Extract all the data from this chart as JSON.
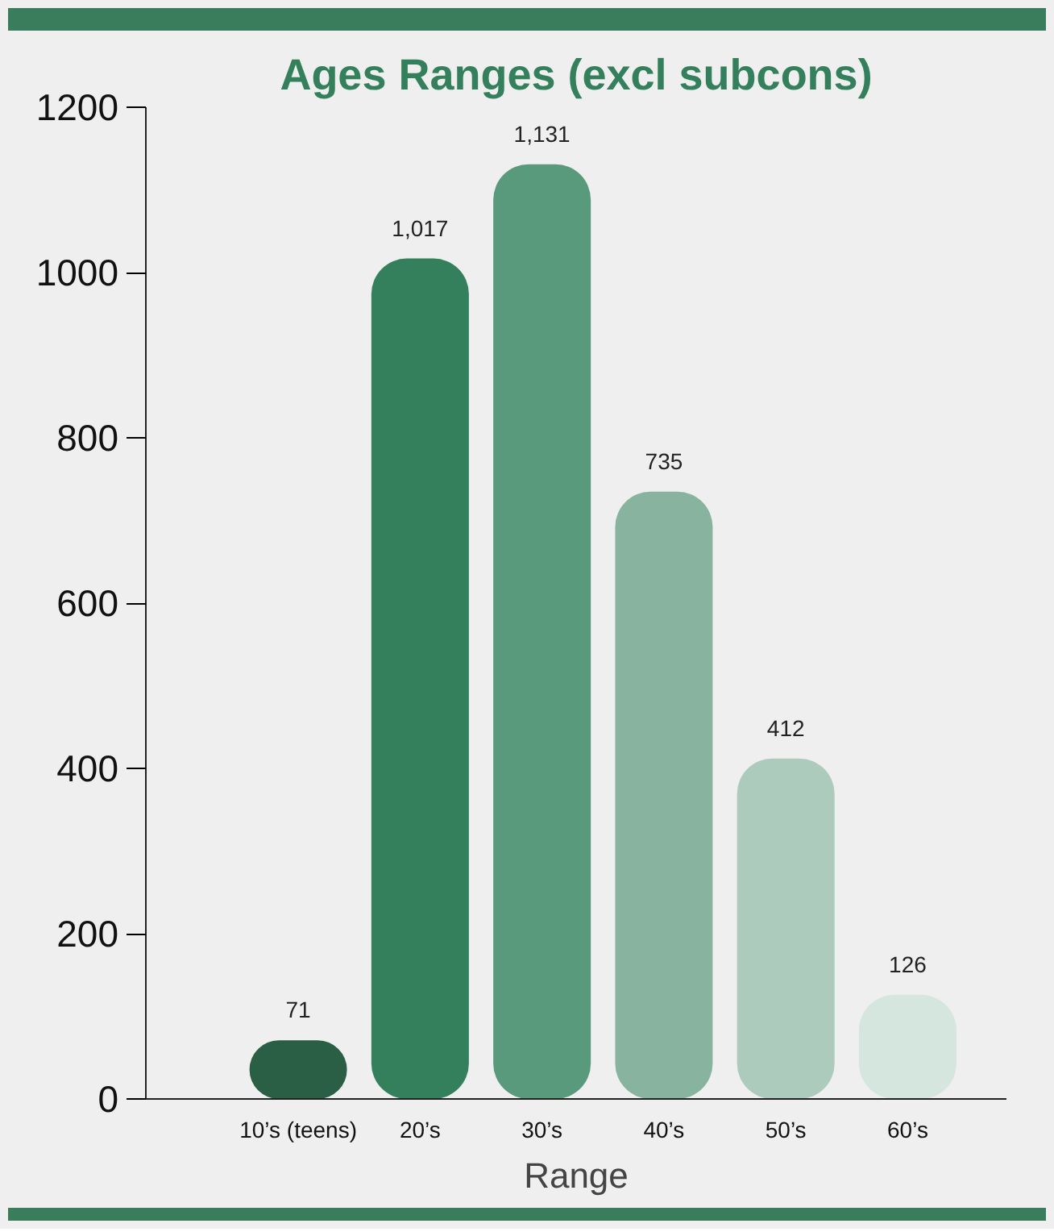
{
  "chart_data": {
    "type": "bar",
    "title": "Ages Ranges (excl subcons)",
    "xlabel": "Range",
    "categories": [
      "10’s (teens)",
      "20’s",
      "30’s",
      "40’s",
      "50’s",
      "60’s"
    ],
    "values": [
      71,
      1017,
      1131,
      735,
      412,
      126
    ],
    "colors": [
      "#2a5f45",
      "#35805c",
      "#5a9a7c",
      "#88b49f",
      "#adcbbd",
      "#d5e6de"
    ],
    "value_labels": [
      "71",
      "1,017",
      "1,131",
      "735",
      "412",
      "126"
    ],
    "ylim": [
      0,
      1200
    ],
    "yticks": [
      0,
      200,
      400,
      600,
      800,
      1000,
      1200
    ],
    "grid": false
  }
}
